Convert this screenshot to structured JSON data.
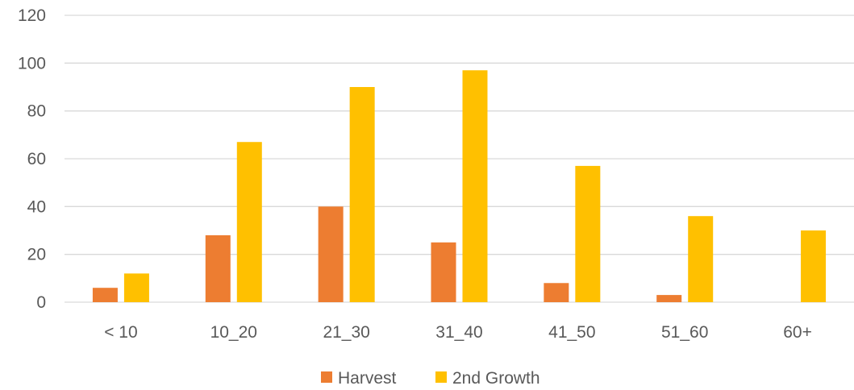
{
  "chart_data": {
    "type": "bar",
    "title": "",
    "xlabel": "",
    "ylabel": "",
    "categories": [
      "< 10",
      "10_20",
      "21_30",
      "31_40",
      "41_50",
      "51_60",
      "60+"
    ],
    "series": [
      {
        "name": "Harvest",
        "color": "#ED7D31",
        "values": [
          6,
          28,
          40,
          25,
          8,
          3,
          0
        ]
      },
      {
        "name": "2nd Growth",
        "color": "#FFC000",
        "values": [
          12,
          67,
          90,
          97,
          57,
          36,
          30
        ]
      }
    ],
    "ylim": [
      0,
      120
    ],
    "yticks": [
      "0",
      "20",
      "40",
      "60",
      "80",
      "100",
      "120"
    ],
    "grid": true,
    "legend_position": "bottom"
  }
}
